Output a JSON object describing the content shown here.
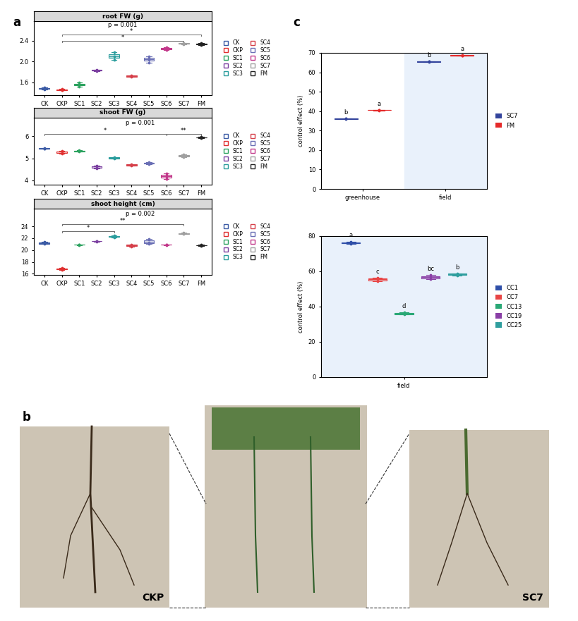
{
  "chart_data": [
    {
      "type": "box",
      "title": "root FW (g)",
      "categories": [
        "CK",
        "CKP",
        "SC1",
        "SC2",
        "SC3",
        "SC4",
        "SC5",
        "SC6",
        "SC7",
        "FM"
      ],
      "colors": [
        "#3b5ba5",
        "#e03030",
        "#2ca25f",
        "#7b3fa0",
        "#2a9d9d",
        "#d6404a",
        "#6a6fb5",
        "#c2388a",
        "#a0a0a0",
        "#222222"
      ],
      "values": [
        [
          1.46,
          1.48,
          1.5
        ],
        [
          1.44,
          1.45,
          1.47
        ],
        [
          1.52,
          1.55,
          1.59
        ],
        [
          1.81,
          1.83,
          1.84
        ],
        [
          2.03,
          2.1,
          2.18
        ],
        [
          1.7,
          1.72,
          1.73
        ],
        [
          1.98,
          2.05,
          2.1
        ],
        [
          2.22,
          2.25,
          2.28
        ],
        [
          2.33,
          2.35,
          2.36
        ],
        [
          2.32,
          2.34,
          2.36
        ]
      ],
      "ylim": [
        1.35,
        2.78
      ],
      "yticks": [
        1.6,
        2.0,
        2.4
      ],
      "grid": false,
      "legend": "right",
      "brackets": [
        {
          "from": "CKP",
          "to": "SC7",
          "y": 2.4,
          "label": "*"
        },
        {
          "from": "CKP",
          "to": "FM",
          "y": 2.52,
          "label": "*"
        }
      ],
      "annotations": [
        {
          "text": "p = 0.001",
          "x": "SC3",
          "y": 2.64
        }
      ]
    },
    {
      "type": "box",
      "title": "shoot FW (g)",
      "categories": [
        "CK",
        "CKP",
        "SC1",
        "SC2",
        "SC3",
        "SC4",
        "SC5",
        "SC6",
        "SC7",
        "FM"
      ],
      "colors": [
        "#3b5ba5",
        "#e03030",
        "#2ca25f",
        "#7b3fa0",
        "#2a9d9d",
        "#d6404a",
        "#6a6fb5",
        "#c2388a",
        "#a0a0a0",
        "#222222"
      ],
      "values": [
        [
          5.43,
          5.45,
          5.48
        ],
        [
          5.22,
          5.3,
          5.33
        ],
        [
          5.3,
          5.33,
          5.37
        ],
        [
          4.55,
          4.62,
          4.66
        ],
        [
          4.98,
          5.02,
          5.06
        ],
        [
          4.66,
          4.7,
          4.74
        ],
        [
          4.72,
          4.78,
          4.84
        ],
        [
          4.05,
          4.2,
          4.3
        ],
        [
          5.05,
          5.12,
          5.18
        ],
        [
          5.92,
          5.95,
          5.98
        ]
      ],
      "ylim": [
        3.8,
        6.85
      ],
      "yticks": [
        4,
        5,
        6
      ],
      "grid": false,
      "legend": "right",
      "brackets": [
        {
          "from": "CK",
          "to": "SC6",
          "y": 6.1,
          "label": "*"
        },
        {
          "from": "SC6",
          "to": "FM",
          "y": 6.1,
          "label": "**"
        }
      ],
      "annotations": [
        {
          "text": "p = 0.001",
          "x": "SC4",
          "y": 6.45
        }
      ]
    },
    {
      "type": "box",
      "title": "shoot height (cm)",
      "categories": [
        "CK",
        "CKP",
        "SC1",
        "SC2",
        "SC3",
        "SC4",
        "SC5",
        "SC6",
        "SC7",
        "FM"
      ],
      "colors": [
        "#3b5ba5",
        "#e03030",
        "#2ca25f",
        "#7b3fa0",
        "#2a9d9d",
        "#d6404a",
        "#6a6fb5",
        "#c2388a",
        "#a0a0a0",
        "#222222"
      ],
      "values": [
        [
          21.0,
          21.2,
          21.4
        ],
        [
          16.6,
          16.8,
          17.0
        ],
        [
          20.85,
          20.9,
          20.95
        ],
        [
          21.45,
          21.5,
          21.55
        ],
        [
          22.1,
          22.3,
          22.5
        ],
        [
          20.6,
          20.8,
          20.95
        ],
        [
          21.1,
          21.3,
          21.9
        ],
        [
          20.85,
          20.9,
          20.95
        ],
        [
          22.7,
          22.8,
          22.9
        ],
        [
          20.7,
          20.8,
          20.9
        ]
      ],
      "ylim": [
        15.8,
        27.0
      ],
      "yticks": [
        16,
        18,
        20,
        22,
        24
      ],
      "grid": false,
      "legend": "right",
      "brackets": [
        {
          "from": "CKP",
          "to": "SC3",
          "y": 23.2,
          "label": "*"
        },
        {
          "from": "CKP",
          "to": "SC7",
          "y": 24.4,
          "label": "**"
        }
      ],
      "annotations": [
        {
          "text": "p = 0.002",
          "x": "SC4",
          "y": 25.6
        }
      ]
    },
    {
      "type": "box",
      "y_label": "control effect (%)",
      "categories": [
        "greenhouse",
        "field"
      ],
      "series": [
        {
          "name": "SC7",
          "color": "#33449c",
          "values": [
            [
              35.8,
              36.1,
              36.3
            ],
            [
              65.2,
              65.5,
              65.8
            ]
          ],
          "significance": [
            "b",
            "b"
          ]
        },
        {
          "name": "FM",
          "color": "#e52a2a",
          "values": [
            [
              40.3,
              40.6,
              40.8
            ],
            [
              68.4,
              68.7,
              69.0
            ]
          ],
          "significance": [
            "a",
            "a"
          ]
        }
      ],
      "ylim": [
        0,
        70
      ],
      "yticks": [
        0,
        10,
        20,
        30,
        40,
        50,
        60,
        70
      ],
      "grid": false,
      "legend": "right"
    },
    {
      "type": "box",
      "y_label": "control effect (%)",
      "categories": [
        "field"
      ],
      "series": [
        {
          "name": "CC1",
          "color": "#2f4fa8",
          "values": [
            [
              75.5,
              76.2,
              77.0
            ]
          ],
          "significance": [
            "a"
          ]
        },
        {
          "name": "CC7",
          "color": "#e84545",
          "values": [
            [
              54.5,
              55.5,
              56.5
            ]
          ],
          "significance": [
            "c"
          ]
        },
        {
          "name": "CC13",
          "color": "#2aa876",
          "values": [
            [
              35.5,
              36.0,
              36.8
            ]
          ],
          "significance": [
            "d"
          ]
        },
        {
          "name": "CC19",
          "color": "#8a3fa6",
          "values": [
            [
              55.5,
              56.8,
              58.0
            ]
          ],
          "significance": [
            "bc"
          ]
        },
        {
          "name": "CC25",
          "color": "#2f9e9e",
          "values": [
            [
              57.8,
              58.5,
              59.0
            ]
          ],
          "significance": [
            "b"
          ]
        }
      ],
      "ylim": [
        0,
        80
      ],
      "yticks": [
        0,
        20,
        40,
        60,
        80
      ],
      "grid": false,
      "legend": "right"
    }
  ],
  "figure": {
    "panel_labels": [
      "a",
      "b",
      "c"
    ],
    "photo_labels": [
      "CKP",
      "SC7"
    ]
  }
}
